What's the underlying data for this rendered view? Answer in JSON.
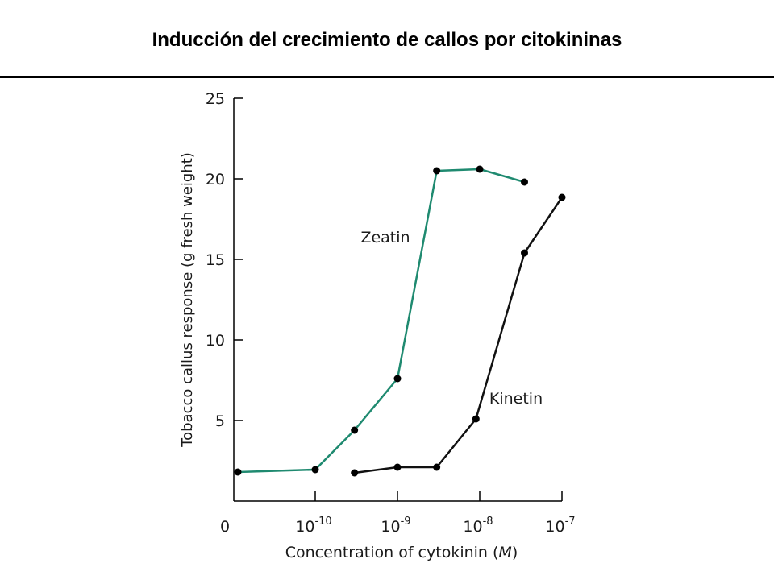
{
  "slide": {
    "title": "Inducción del crecimiento de callos por citokininas"
  },
  "chart_data": {
    "type": "line",
    "x_scale": "log",
    "xlabel": "Concentration of cytokinin (M)",
    "ylabel": "Tobacco callus response (g fresh weight)",
    "x_ticks": [
      "0",
      "10-10",
      "10-9",
      "10-8",
      "10-7"
    ],
    "y_ticks": [
      "5",
      "10",
      "15",
      "20",
      "25"
    ],
    "ylim": [
      0,
      25
    ],
    "series": [
      {
        "name": "Zeatin",
        "color": "#1f8a70",
        "points": [
          {
            "x": "0",
            "y": 1.8
          },
          {
            "x": 1e-10,
            "y": 1.95
          },
          {
            "x": 3e-10,
            "y": 4.4
          },
          {
            "x": 1e-09,
            "y": 7.6
          },
          {
            "x": 3e-09,
            "y": 20.5
          },
          {
            "x": 1e-08,
            "y": 20.6
          },
          {
            "x": 3.5e-08,
            "y": 19.8
          }
        ]
      },
      {
        "name": "Kinetin",
        "color": "#111111",
        "points": [
          {
            "x": 3e-10,
            "y": 1.75
          },
          {
            "x": 1e-09,
            "y": 2.1
          },
          {
            "x": 3e-09,
            "y": 2.1
          },
          {
            "x": 9e-09,
            "y": 5.1
          },
          {
            "x": 3.5e-08,
            "y": 15.4
          },
          {
            "x": 1e-07,
            "y": 18.85
          }
        ]
      }
    ]
  }
}
